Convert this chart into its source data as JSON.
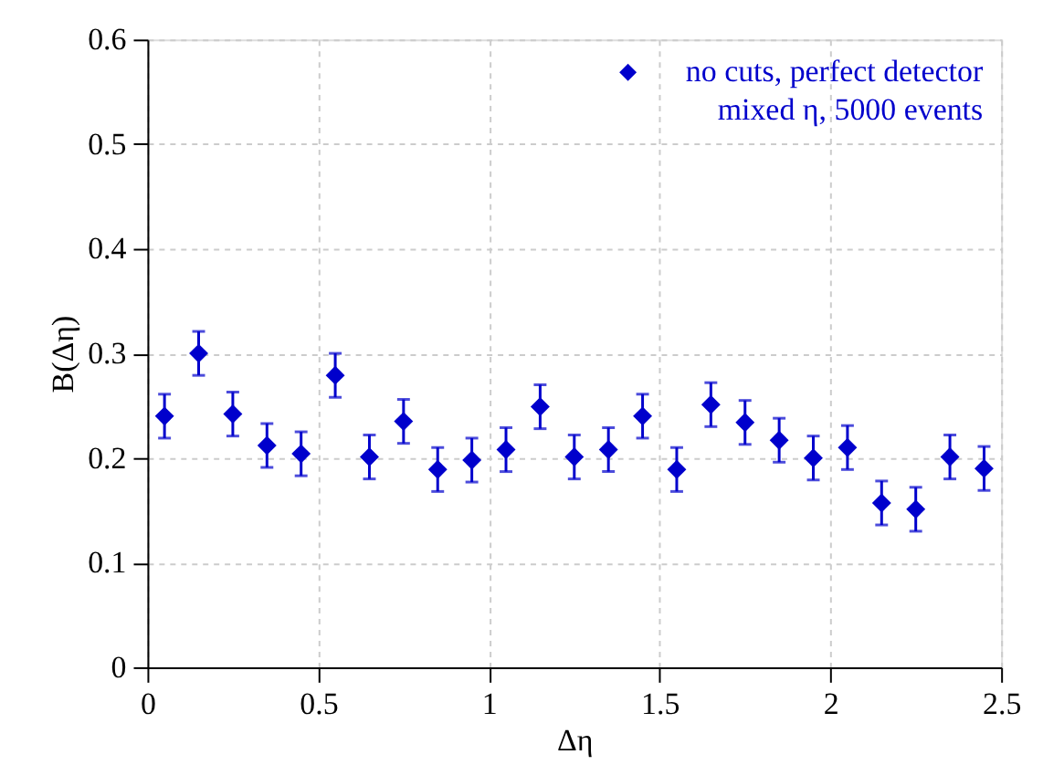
{
  "chart_data": {
    "type": "scatter",
    "xlabel": "Δη",
    "ylabel": "B(Δη)",
    "x": [
      0.05,
      0.15,
      0.25,
      0.35,
      0.45,
      0.55,
      0.65,
      0.75,
      0.85,
      0.95,
      1.05,
      1.15,
      1.25,
      1.35,
      1.45,
      1.55,
      1.65,
      1.75,
      1.85,
      1.95,
      2.05,
      2.15,
      2.25,
      2.35,
      2.45
    ],
    "series": [
      {
        "name": "no cuts, perfect detector\nmixed η, 5000 events",
        "color": "#0000cc",
        "values": [
          0.24,
          0.3,
          0.242,
          0.212,
          0.204,
          0.279,
          0.201,
          0.235,
          0.189,
          0.198,
          0.208,
          0.249,
          0.201,
          0.208,
          0.24,
          0.189,
          0.251,
          0.234,
          0.217,
          0.2,
          0.21,
          0.157,
          0.151,
          0.201,
          0.19
        ],
        "errors": [
          0.021,
          0.021,
          0.021,
          0.021,
          0.021,
          0.021,
          0.021,
          0.021,
          0.021,
          0.021,
          0.021,
          0.021,
          0.021,
          0.021,
          0.021,
          0.021,
          0.021,
          0.021,
          0.021,
          0.021,
          0.021,
          0.021,
          0.021,
          0.021,
          0.021
        ]
      }
    ],
    "xlim": [
      0,
      2.5
    ],
    "xticks": [
      0,
      0.5,
      1,
      1.5,
      2,
      2.5
    ],
    "ylim": [
      0,
      0.6
    ],
    "yticks": [
      0,
      0.1,
      0.2,
      0.3,
      0.4,
      0.5,
      0.6
    ],
    "grid": true,
    "legend": "top right",
    "marker": "diamond"
  }
}
